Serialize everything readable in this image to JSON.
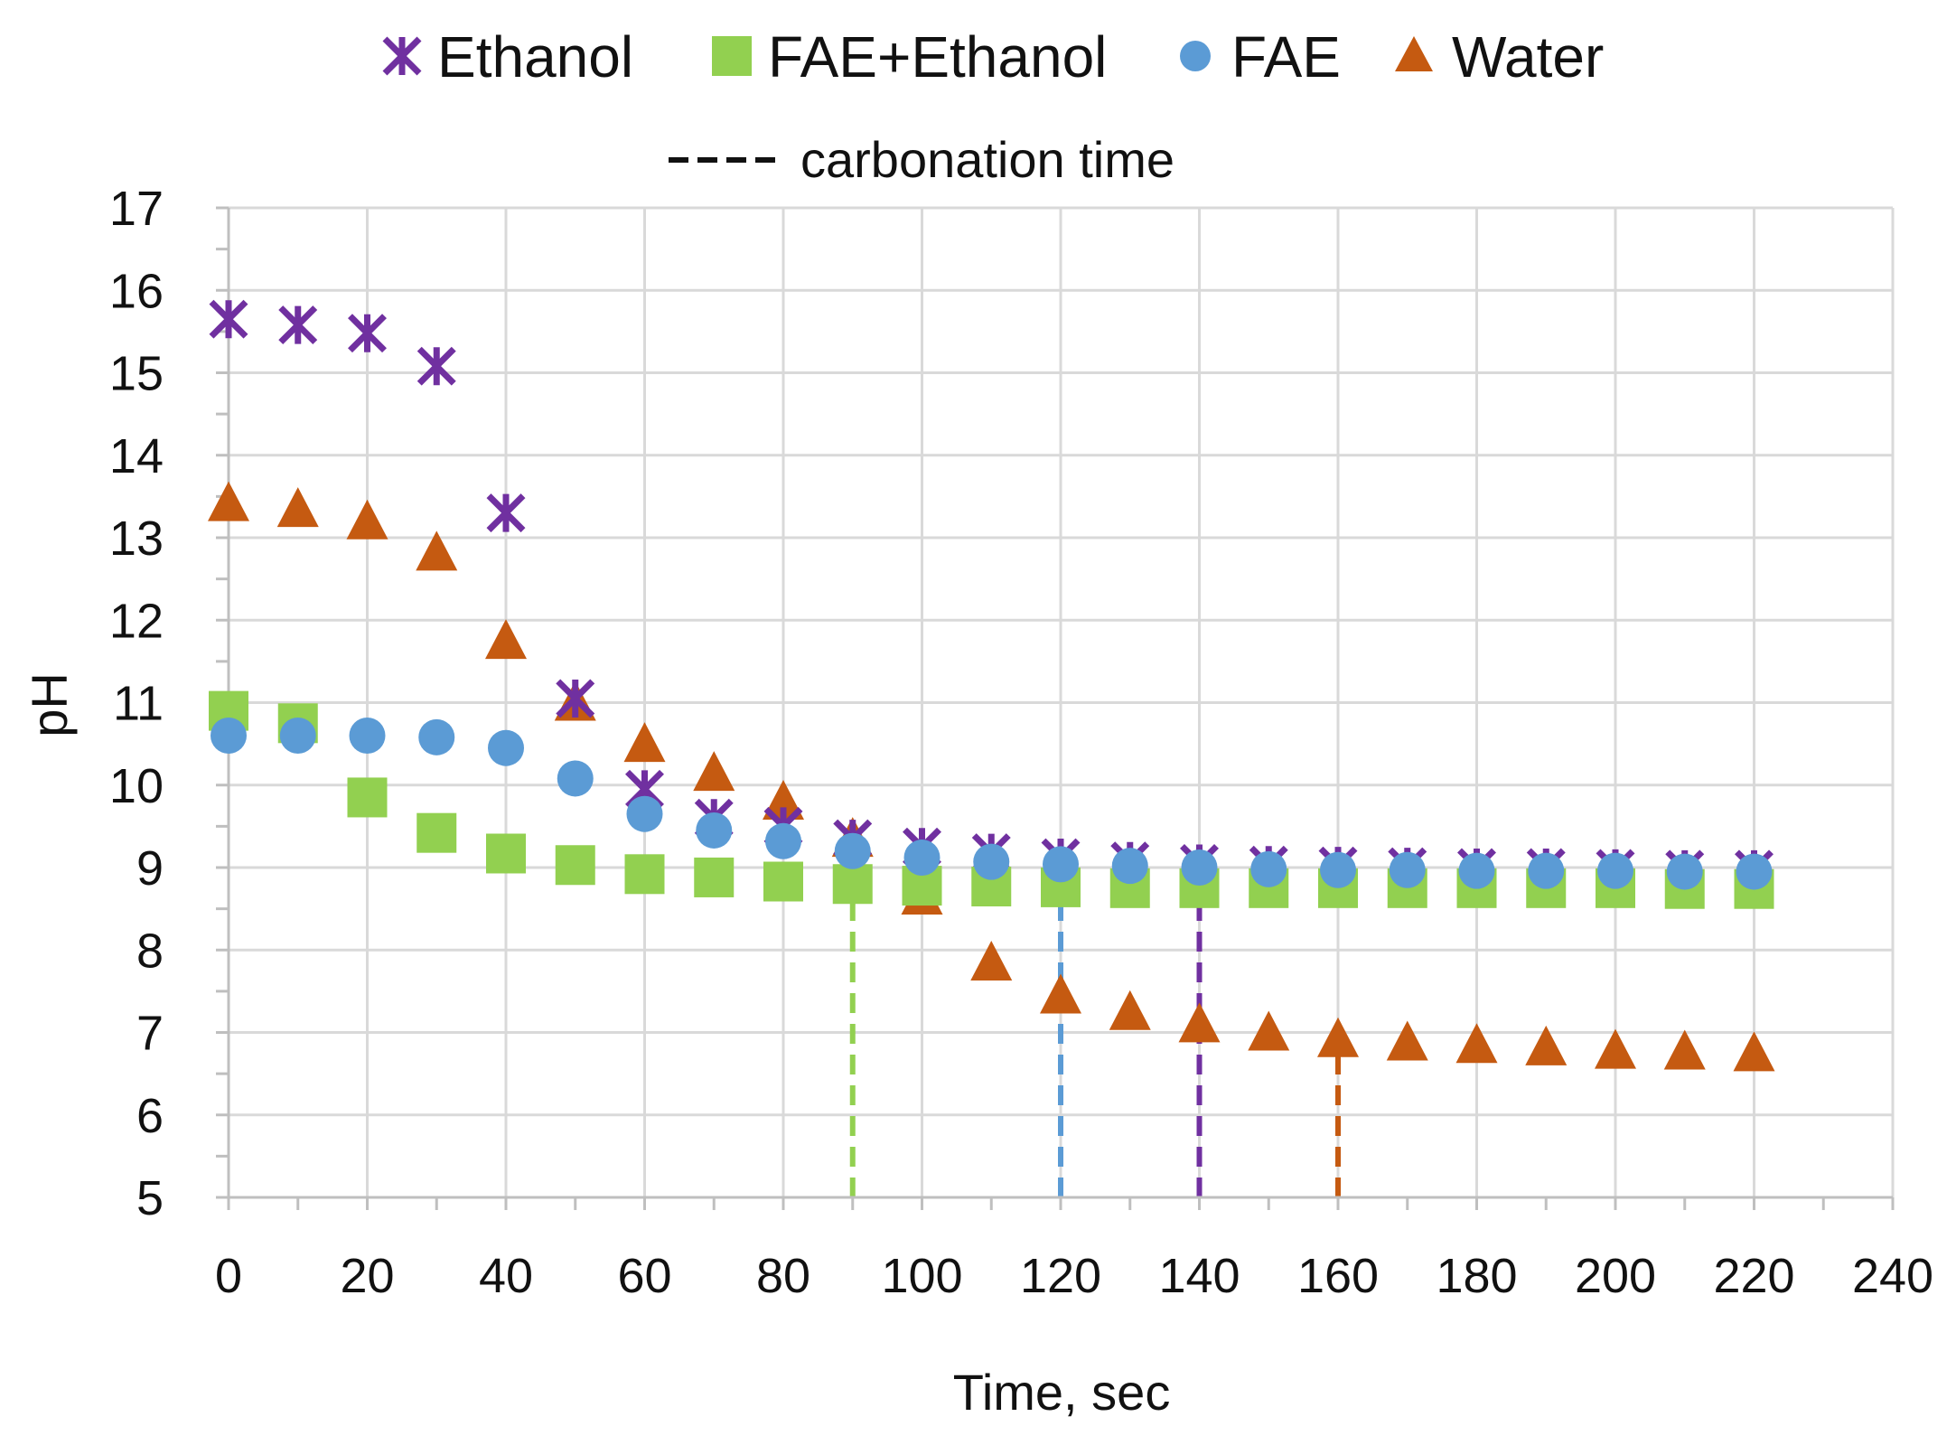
{
  "chart_data": {
    "type": "scatter",
    "title": "",
    "xlabel": "Time, sec",
    "ylabel": "pH",
    "xlim": [
      0,
      240
    ],
    "ylim": [
      5,
      17
    ],
    "xticks": [
      0,
      20,
      40,
      60,
      80,
      100,
      120,
      140,
      160,
      180,
      200,
      220,
      240
    ],
    "yticks": [
      5,
      6,
      7,
      8,
      9,
      10,
      11,
      12,
      13,
      14,
      15,
      16,
      17
    ],
    "x_tick_labels": [
      "0",
      "20",
      "40",
      "60",
      "80",
      "100",
      "120",
      "140",
      "160",
      "180",
      "200",
      "220",
      "240"
    ],
    "y_tick_labels": [
      "5",
      "6",
      "7",
      "8",
      "9",
      "10",
      "11",
      "12",
      "13",
      "14",
      "15",
      "16",
      "17"
    ],
    "grid": true,
    "legend_position": "top",
    "series": [
      {
        "name": "Ethanol",
        "marker": "asterisk",
        "color": "#7030A0",
        "x": [
          0,
          10,
          20,
          30,
          40,
          50,
          60,
          70,
          80,
          90,
          100,
          110,
          120,
          130,
          140,
          150,
          160,
          170,
          180,
          190,
          200,
          210,
          220
        ],
        "values": [
          15.65,
          15.58,
          15.48,
          15.08,
          13.3,
          11.05,
          9.95,
          9.6,
          9.5,
          9.35,
          9.25,
          9.18,
          9.12,
          9.08,
          9.05,
          9.03,
          9.02,
          9.01,
          9.0,
          9.0,
          8.99,
          8.98,
          8.98
        ]
      },
      {
        "name": "FAE+Ethanol",
        "marker": "square",
        "color": "#92D050",
        "x": [
          0,
          10,
          20,
          30,
          40,
          50,
          60,
          70,
          80,
          90,
          100,
          110,
          120,
          130,
          140,
          150,
          160,
          170,
          180,
          190,
          200,
          210,
          220
        ],
        "values": [
          10.9,
          10.75,
          9.85,
          9.42,
          9.17,
          9.03,
          8.92,
          8.88,
          8.83,
          8.8,
          8.78,
          8.77,
          8.76,
          8.75,
          8.75,
          8.75,
          8.75,
          8.75,
          8.75,
          8.75,
          8.75,
          8.74,
          8.74
        ]
      },
      {
        "name": "FAE",
        "marker": "circle",
        "color": "#5B9BD5",
        "x": [
          0,
          10,
          20,
          30,
          40,
          50,
          60,
          70,
          80,
          90,
          100,
          110,
          120,
          130,
          140,
          150,
          160,
          170,
          180,
          190,
          200,
          210,
          220
        ],
        "values": [
          10.6,
          10.6,
          10.6,
          10.58,
          10.45,
          10.08,
          9.65,
          9.45,
          9.32,
          9.2,
          9.12,
          9.07,
          9.04,
          9.02,
          9.0,
          8.98,
          8.97,
          8.97,
          8.96,
          8.96,
          8.96,
          8.95,
          8.95
        ]
      },
      {
        "name": "Water",
        "marker": "triangle",
        "color": "#C55A11",
        "x": [
          0,
          10,
          20,
          30,
          40,
          50,
          60,
          70,
          80,
          90,
          100,
          110,
          120,
          130,
          140,
          150,
          160,
          170,
          180,
          190,
          200,
          210,
          220
        ],
        "values": [
          13.42,
          13.35,
          13.2,
          12.82,
          11.75,
          11.0,
          10.5,
          10.15,
          9.8,
          9.35,
          8.65,
          7.85,
          7.45,
          7.25,
          7.1,
          7.0,
          6.92,
          6.88,
          6.85,
          6.82,
          6.78,
          6.77,
          6.75
        ]
      }
    ],
    "reference_lines": {
      "legend_label": "carbonation time",
      "style": "dashed",
      "lines": [
        {
          "series": "FAE+Ethanol",
          "x": 90,
          "y_from": 5,
          "y_to": 8.8,
          "color": "#92D050"
        },
        {
          "series": "FAE",
          "x": 120,
          "y_from": 5,
          "y_to": 9.04,
          "color": "#5B9BD5"
        },
        {
          "series": "Ethanol",
          "x": 140,
          "y_from": 5,
          "y_to": 9.05,
          "color": "#7030A0"
        },
        {
          "series": "Water",
          "x": 160,
          "y_from": 5,
          "y_to": 6.92,
          "color": "#C55A11"
        }
      ]
    }
  }
}
